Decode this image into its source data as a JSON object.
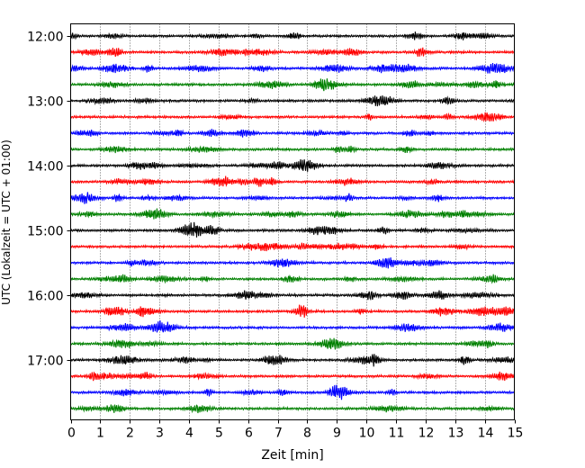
{
  "chart_data": {
    "type": "line",
    "subtype": "helicorder",
    "xlabel": "Zeit  [min]",
    "ylabel": "UTC (Lokalzeit = UTC + 01:00)",
    "xlim": [
      0,
      15
    ],
    "x_ticks": [
      "0",
      "1",
      "2",
      "3",
      "4",
      "5",
      "6",
      "7",
      "8",
      "9",
      "10",
      "11",
      "12",
      "13",
      "14",
      "15"
    ],
    "row_interval_min": 15,
    "rows": [
      "12:00",
      "12:15",
      "12:30",
      "12:45",
      "13:00",
      "13:15",
      "13:30",
      "13:45",
      "14:00",
      "14:15",
      "14:30",
      "14:45",
      "15:00",
      "15:15",
      "15:30",
      "15:45",
      "16:00",
      "16:15",
      "16:30",
      "16:45",
      "17:00",
      "17:15",
      "17:30",
      "17:45"
    ],
    "y_ticks": [
      "12:00",
      "13:00",
      "14:00",
      "15:00",
      "16:00",
      "17:00"
    ],
    "trace_colors": [
      "#000000",
      "#ff0000",
      "#0000ff",
      "#008000"
    ],
    "grid": "vertical dotted",
    "legend": "none"
  }
}
